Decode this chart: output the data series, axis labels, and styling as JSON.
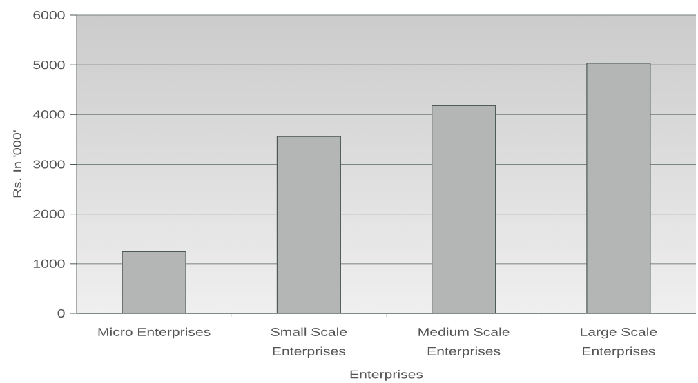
{
  "chart_data": {
    "type": "bar",
    "xlabel": "Enterprises",
    "ylabel": "Rs. In '000'",
    "categories": [
      "Micro Enterprises",
      "Small Scale Enterprises",
      "Medium Scale Enterprises",
      "Large Scale Enterprises"
    ],
    "values": [
      1240,
      3560,
      4180,
      5030
    ],
    "color": "#b3b6b4",
    "ylim": [
      0,
      6000
    ],
    "yticks": [
      0,
      1000,
      2000,
      3000,
      4000,
      5000,
      6000
    ],
    "grid": "y"
  }
}
